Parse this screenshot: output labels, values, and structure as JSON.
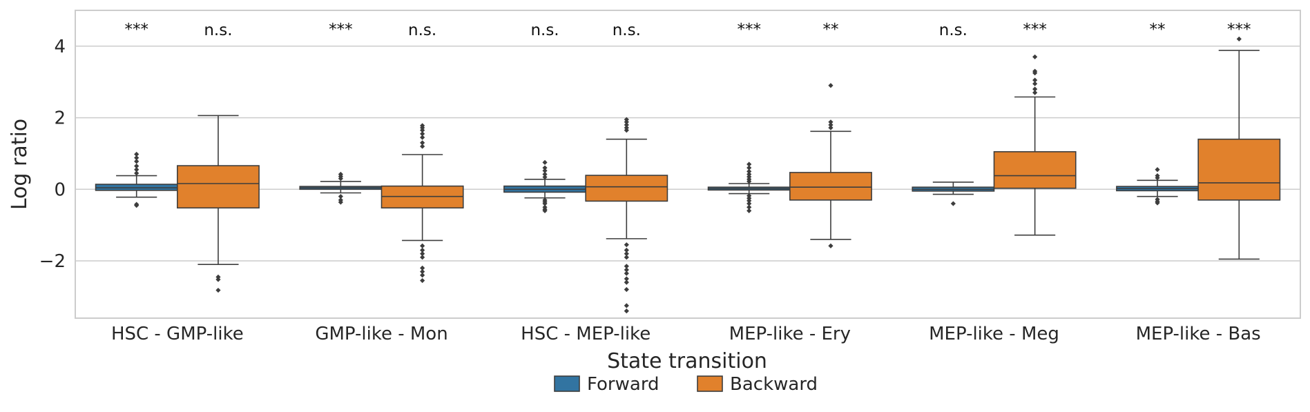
{
  "chart_data": {
    "type": "box",
    "xlabel": "State transition",
    "ylabel": "Log ratio",
    "ylim": [
      -3.6,
      5.0
    ],
    "yticks": [
      -2,
      0,
      2,
      4
    ],
    "grid": "horizontal",
    "legend_placement": "bottom-center",
    "categories": [
      "HSC - GMP-like",
      "GMP-like - Mon",
      "HSC - MEP-like",
      "MEP-like - Ery",
      "MEP-like - Meg",
      "MEP-like - Bas"
    ],
    "series": [
      {
        "name": "Forward",
        "color": "#3274a1",
        "boxes": [
          {
            "q1": -0.03,
            "median": 0.04,
            "q3": 0.14,
            "whisker_low": -0.22,
            "whisker_high": 0.38,
            "outliers": [
              0.45,
              0.55,
              0.65,
              0.78,
              0.88,
              0.98,
              -0.42,
              -0.45
            ]
          },
          {
            "q1": 0.0,
            "median": 0.04,
            "q3": 0.08,
            "whisker_low": -0.1,
            "whisker_high": 0.22,
            "outliers": [
              0.3,
              0.36,
              0.42,
              -0.2,
              -0.3,
              -0.36
            ]
          },
          {
            "q1": -0.08,
            "median": 0.0,
            "q3": 0.09,
            "whisker_low": -0.24,
            "whisker_high": 0.28,
            "outliers": [
              0.34,
              0.42,
              0.52,
              0.6,
              0.75,
              -0.3,
              -0.35,
              -0.4,
              -0.5,
              -0.56,
              -0.6
            ]
          },
          {
            "q1": -0.02,
            "median": 0.02,
            "q3": 0.06,
            "whisker_low": -0.12,
            "whisker_high": 0.16,
            "outliers": [
              0.22,
              0.28,
              0.35,
              0.42,
              0.5,
              0.6,
              0.7,
              -0.18,
              -0.25,
              -0.32,
              -0.4,
              -0.5,
              -0.6
            ]
          },
          {
            "q1": -0.05,
            "median": 0.0,
            "q3": 0.06,
            "whisker_low": -0.14,
            "whisker_high": 0.2,
            "outliers": [
              -0.4
            ]
          },
          {
            "q1": -0.04,
            "median": 0.02,
            "q3": 0.08,
            "whisker_low": -0.2,
            "whisker_high": 0.25,
            "outliers": [
              0.32,
              0.38,
              0.55,
              -0.28,
              -0.34,
              -0.38
            ]
          }
        ]
      },
      {
        "name": "Backward",
        "color": "#e1812c",
        "boxes": [
          {
            "q1": -0.52,
            "median": 0.16,
            "q3": 0.66,
            "whisker_low": -2.1,
            "whisker_high": 2.06,
            "outliers": [
              -2.45,
              -2.52,
              -2.82
            ]
          },
          {
            "q1": -0.52,
            "median": -0.2,
            "q3": 0.09,
            "whisker_low": -1.43,
            "whisker_high": 0.97,
            "outliers": [
              1.2,
              1.3,
              1.45,
              1.55,
              1.65,
              1.72,
              1.78,
              -1.58,
              -1.7,
              -1.8,
              -1.9,
              -2.2,
              -2.3,
              -2.4,
              -2.55
            ]
          },
          {
            "q1": -0.33,
            "median": 0.07,
            "q3": 0.39,
            "whisker_low": -1.38,
            "whisker_high": 1.4,
            "outliers": [
              1.65,
              1.72,
              1.8,
              1.88,
              1.95,
              -1.55,
              -1.7,
              -1.8,
              -1.9,
              -2.15,
              -2.25,
              -2.35,
              -2.5,
              -2.6,
              -2.8,
              -3.25,
              -3.4
            ]
          },
          {
            "q1": -0.3,
            "median": 0.06,
            "q3": 0.47,
            "whisker_low": -1.4,
            "whisker_high": 1.62,
            "outliers": [
              1.72,
              1.8,
              1.88,
              2.9,
              -1.58
            ]
          },
          {
            "q1": 0.03,
            "median": 0.38,
            "q3": 1.05,
            "whisker_low": -1.28,
            "whisker_high": 2.58,
            "outliers": [
              2.7,
              2.8,
              2.95,
              3.05,
              3.25,
              3.3,
              3.7
            ]
          },
          {
            "q1": -0.3,
            "median": 0.18,
            "q3": 1.4,
            "whisker_low": -1.95,
            "whisker_high": 3.88,
            "outliers": [
              4.2
            ]
          }
        ]
      }
    ],
    "annotations": [
      {
        "category": 0,
        "series": 0,
        "text": "***"
      },
      {
        "category": 0,
        "series": 1,
        "text": "n.s."
      },
      {
        "category": 1,
        "series": 0,
        "text": "***"
      },
      {
        "category": 1,
        "series": 1,
        "text": "n.s."
      },
      {
        "category": 2,
        "series": 0,
        "text": "n.s."
      },
      {
        "category": 2,
        "series": 1,
        "text": "n.s."
      },
      {
        "category": 3,
        "series": 0,
        "text": "***"
      },
      {
        "category": 3,
        "series": 1,
        "text": "**"
      },
      {
        "category": 4,
        "series": 0,
        "text": "n.s."
      },
      {
        "category": 4,
        "series": 1,
        "text": "***"
      },
      {
        "category": 5,
        "series": 0,
        "text": "**"
      },
      {
        "category": 5,
        "series": 1,
        "text": "***"
      }
    ]
  }
}
